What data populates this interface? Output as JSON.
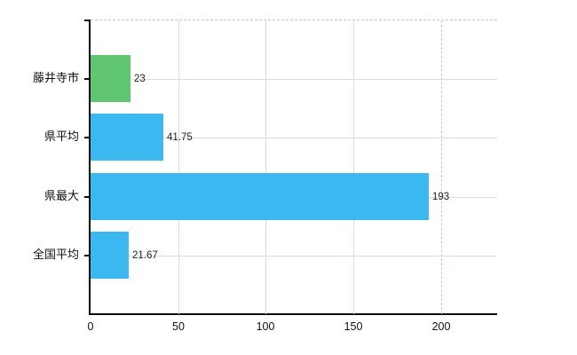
{
  "chart_data": {
    "type": "bar",
    "orientation": "horizontal",
    "title": "",
    "xlabel": "",
    "ylabel": "",
    "categories": [
      "藤井寺市",
      "県平均",
      "県最大",
      "全国平均"
    ],
    "values": [
      23,
      41.75,
      193,
      21.67
    ],
    "value_labels": [
      "23",
      "41.75",
      "193",
      "21.67"
    ],
    "bar_colors": [
      "#5fc573",
      "#3cb8f1",
      "#3cb8f1",
      "#3cb8f1"
    ],
    "x_axis": {
      "ticks": [
        0,
        50,
        100,
        150,
        200
      ],
      "tick_labels": [
        "0",
        "50",
        "100",
        "150",
        "200"
      ],
      "xlim": [
        0,
        232
      ],
      "dashed_gridline_at": 200
    },
    "grid": true,
    "legend": false
  },
  "colors": {
    "background": "#ffffff",
    "bar_green": "#5fc573",
    "bar_blue": "#3cb8f1",
    "axis_line": "#0a0a0a",
    "gridline": "#d7ded7",
    "dashed_line": "#d4c3c9",
    "text": "#111111"
  }
}
